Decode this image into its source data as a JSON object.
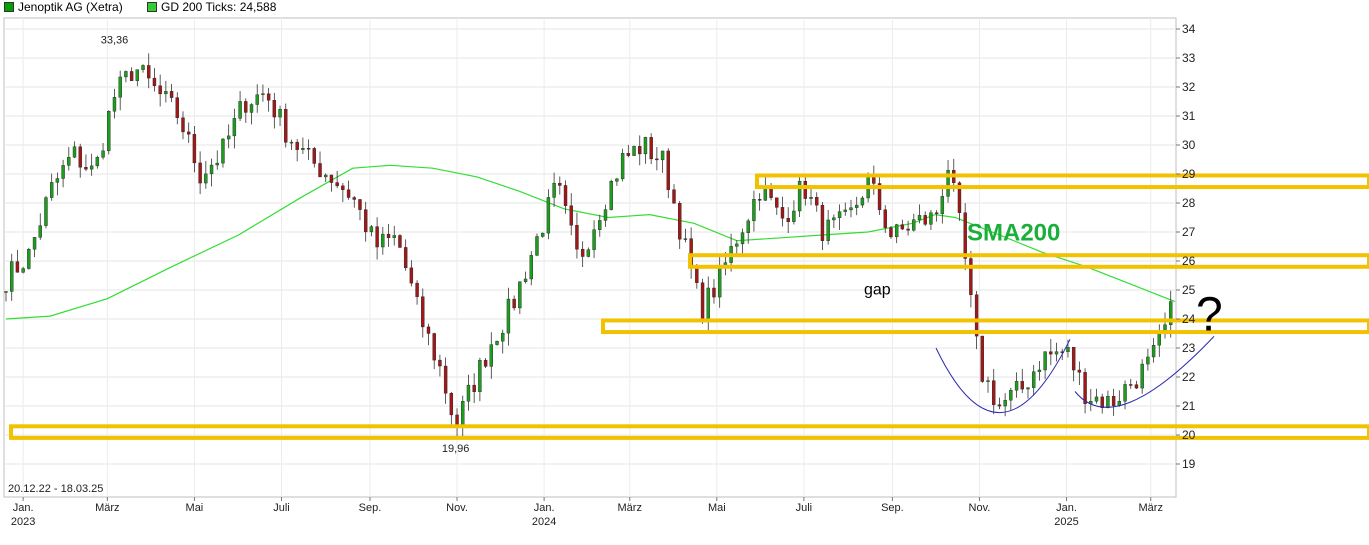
{
  "legend": {
    "series1": "Jenoptik AG (Xetra)",
    "series2": "GD 200 Ticks: 24,588",
    "color1": "#00a000",
    "color2": "#33cc33"
  },
  "date_range": "20.12.22 - 18.03.25",
  "chart_data": {
    "type": "line",
    "title": "",
    "xlabel": "",
    "ylabel": "",
    "ylim": [
      18.5,
      34.4
    ],
    "yticks": [
      19,
      20,
      21,
      22,
      23,
      24,
      25,
      26,
      27,
      28,
      29,
      30,
      31,
      32,
      33,
      34
    ],
    "x_ticks": [
      {
        "label": "Jan.",
        "sub": "2023",
        "date": "2023-01-01"
      },
      {
        "label": "März",
        "sub": "",
        "date": "2023-03-01"
      },
      {
        "label": "Mai",
        "sub": "",
        "date": "2023-05-01"
      },
      {
        "label": "Juli",
        "sub": "",
        "date": "2023-07-01"
      },
      {
        "label": "Sep.",
        "sub": "",
        "date": "2023-09-01"
      },
      {
        "label": "Nov.",
        "sub": "",
        "date": "2023-11-01"
      },
      {
        "label": "Jan.",
        "sub": "2024",
        "date": "2024-01-01"
      },
      {
        "label": "März",
        "sub": "",
        "date": "2024-03-01"
      },
      {
        "label": "Mai",
        "sub": "",
        "date": "2024-05-01"
      },
      {
        "label": "Juli",
        "sub": "",
        "date": "2024-07-01"
      },
      {
        "label": "Sep.",
        "sub": "",
        "date": "2024-09-01"
      },
      {
        "label": "Nov.",
        "sub": "",
        "date": "2024-11-01"
      },
      {
        "label": "Jan.",
        "sub": "2025",
        "date": "2025-01-01"
      },
      {
        "label": "März",
        "sub": "",
        "date": "2025-03-01"
      }
    ],
    "series": [
      {
        "name": "Jenoptik AG (Xetra)",
        "style": "candlestick",
        "x": [
          "2022-12-20",
          "2023-01-05",
          "2023-01-20",
          "2023-02-05",
          "2023-02-20",
          "2023-03-05",
          "2023-03-20",
          "2023-04-05",
          "2023-04-20",
          "2023-05-05",
          "2023-05-20",
          "2023-06-05",
          "2023-06-20",
          "2023-07-05",
          "2023-07-20",
          "2023-08-05",
          "2023-08-20",
          "2023-09-05",
          "2023-09-20",
          "2023-10-05",
          "2023-10-20",
          "2023-10-31",
          "2023-11-10",
          "2023-11-25",
          "2023-12-10",
          "2023-12-25",
          "2024-01-10",
          "2024-01-25",
          "2024-02-10",
          "2024-02-25",
          "2024-03-10",
          "2024-03-25",
          "2024-04-10",
          "2024-04-20",
          "2024-05-01",
          "2024-05-15",
          "2024-06-01",
          "2024-06-15",
          "2024-07-01",
          "2024-07-15",
          "2024-08-01",
          "2024-08-15",
          "2024-09-01",
          "2024-09-15",
          "2024-10-01",
          "2024-10-10",
          "2024-10-20",
          "2024-11-01",
          "2024-11-15",
          "2024-12-01",
          "2024-12-15",
          "2025-01-01",
          "2025-01-15",
          "2025-02-01",
          "2025-02-15",
          "2025-03-01",
          "2025-03-10",
          "2025-03-18"
        ],
        "values": [
          25.4,
          26.2,
          28.4,
          29.7,
          29.0,
          31.6,
          32.7,
          31.8,
          31.0,
          29.0,
          29.7,
          31.5,
          31.8,
          30.4,
          29.5,
          28.9,
          28.2,
          26.5,
          26.8,
          24.2,
          22.3,
          20.3,
          21.5,
          23.2,
          24.5,
          26.5,
          28.6,
          26.0,
          27.9,
          29.5,
          30.0,
          29.4,
          26.2,
          24.3,
          25.2,
          26.8,
          28.6,
          27.4,
          28.6,
          27.0,
          27.4,
          28.8,
          26.8,
          27.3,
          27.5,
          29.3,
          26.7,
          22.3,
          21.0,
          21.6,
          22.7,
          22.9,
          21.4,
          21.1,
          21.8,
          22.5,
          23.5,
          24.6
        ]
      },
      {
        "name": "GD 200 Ticks",
        "style": "line",
        "x": [
          "2022-12-20",
          "2023-01-20",
          "2023-03-01",
          "2023-04-15",
          "2023-06-01",
          "2023-07-15",
          "2023-08-20",
          "2023-09-15",
          "2023-10-15",
          "2023-11-15",
          "2023-12-15",
          "2024-01-15",
          "2024-02-15",
          "2024-03-15",
          "2024-04-15",
          "2024-05-15",
          "2024-06-15",
          "2024-07-15",
          "2024-08-15",
          "2024-09-15",
          "2024-10-01",
          "2024-10-15",
          "2024-11-15",
          "2024-12-15",
          "2025-01-15",
          "2025-02-15",
          "2025-03-18"
        ],
        "values": [
          24.0,
          24.1,
          24.7,
          25.8,
          26.9,
          28.2,
          29.2,
          29.3,
          29.2,
          28.9,
          28.4,
          27.8,
          27.5,
          27.6,
          27.3,
          26.7,
          26.8,
          26.9,
          27.0,
          27.3,
          27.6,
          27.5,
          26.9,
          26.3,
          25.8,
          25.2,
          24.6
        ]
      }
    ],
    "labels": [
      {
        "text": "33,36",
        "date": "2023-03-06",
        "value": 33.36
      },
      {
        "text": "19,96",
        "date": "2023-10-31",
        "value": 19.96
      }
    ],
    "annotations": {
      "sma_label": "SMA200",
      "gap_label": "gap",
      "question": "?"
    },
    "annotation_color": "#f2c200",
    "sma_color": "#1aaf3a",
    "up_color": "#1e9c1e",
    "down_color": "#a01818"
  }
}
